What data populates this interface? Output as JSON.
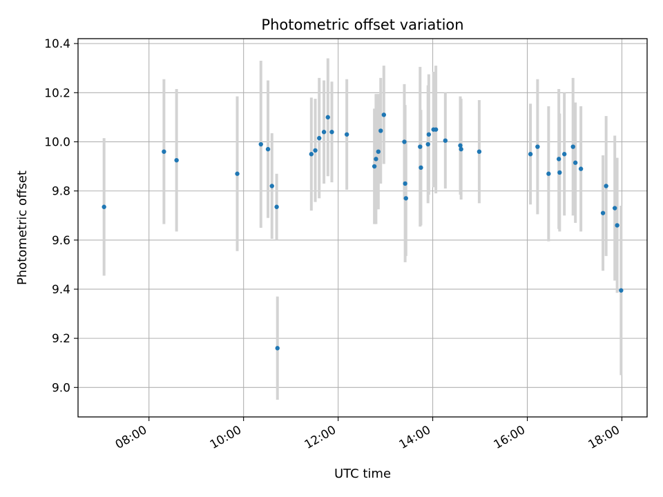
{
  "chart_data": {
    "type": "scatter",
    "title": "Photometric offset variation",
    "xlabel": "UTC time",
    "ylabel": "Photometric offset",
    "x_tick_labels": [
      "08:00",
      "10:00",
      "12:00",
      "14:00",
      "16:00",
      "18:00"
    ],
    "x_ticks": [
      "08:00",
      "10:00",
      "12:00",
      "14:00",
      "16:00",
      "18:00"
    ],
    "y_ticks": [
      9.0,
      9.2,
      9.4,
      9.6,
      9.8,
      10.0,
      10.2,
      10.4
    ],
    "xlim": [
      "06:30",
      "18:32"
    ],
    "ylim": [
      8.88,
      10.42
    ],
    "grid": true,
    "colors": {
      "point": "#1f77b4",
      "errorbar": "#d3d3d3",
      "grid": "#b0b0b0"
    },
    "points": [
      {
        "x": "07:03",
        "y": 9.735,
        "err": 0.28
      },
      {
        "x": "08:19",
        "y": 9.96,
        "err": 0.295
      },
      {
        "x": "08:35",
        "y": 9.925,
        "err": 0.29
      },
      {
        "x": "09:52",
        "y": 9.87,
        "err": 0.315
      },
      {
        "x": "10:22",
        "y": 9.99,
        "err": 0.34
      },
      {
        "x": "10:31",
        "y": 9.97,
        "err": 0.28
      },
      {
        "x": "10:36",
        "y": 9.82,
        "err": 0.215
      },
      {
        "x": "10:42",
        "y": 9.735,
        "err": 0.135
      },
      {
        "x": "10:43",
        "y": 9.16,
        "err": 0.21
      },
      {
        "x": "11:26",
        "y": 9.95,
        "err": 0.23
      },
      {
        "x": "11:31",
        "y": 9.965,
        "err": 0.21
      },
      {
        "x": "11:36",
        "y": 10.015,
        "err": 0.245
      },
      {
        "x": "11:42",
        "y": 10.04,
        "err": 0.21
      },
      {
        "x": "11:47",
        "y": 10.1,
        "err": 0.24
      },
      {
        "x": "11:52",
        "y": 10.04,
        "err": 0.205
      },
      {
        "x": "12:11",
        "y": 10.03,
        "err": 0.225
      },
      {
        "x": "12:46",
        "y": 9.9,
        "err": 0.235
      },
      {
        "x": "12:48",
        "y": 9.93,
        "err": 0.265
      },
      {
        "x": "12:51",
        "y": 9.96,
        "err": 0.235
      },
      {
        "x": "12:54",
        "y": 10.045,
        "err": 0.215
      },
      {
        "x": "12:58",
        "y": 10.11,
        "err": 0.2
      },
      {
        "x": "13:24",
        "y": 10.0,
        "err": 0.235
      },
      {
        "x": "13:25",
        "y": 9.83,
        "err": 0.32
      },
      {
        "x": "13:26",
        "y": 9.77,
        "err": 0.235
      },
      {
        "x": "13:44",
        "y": 9.98,
        "err": 0.325
      },
      {
        "x": "13:45",
        "y": 9.895,
        "err": 0.235
      },
      {
        "x": "13:54",
        "y": 9.99,
        "err": 0.24
      },
      {
        "x": "13:55",
        "y": 10.03,
        "err": 0.245
      },
      {
        "x": "14:01",
        "y": 10.05,
        "err": 0.235
      },
      {
        "x": "14:04",
        "y": 10.05,
        "err": 0.26
      },
      {
        "x": "14:16",
        "y": 10.005,
        "err": 0.195
      },
      {
        "x": "14:35",
        "y": 9.985,
        "err": 0.2
      },
      {
        "x": "14:36",
        "y": 9.97,
        "err": 0.205
      },
      {
        "x": "14:59",
        "y": 9.96,
        "err": 0.21
      },
      {
        "x": "16:04",
        "y": 9.95,
        "err": 0.205
      },
      {
        "x": "16:13",
        "y": 9.98,
        "err": 0.275
      },
      {
        "x": "16:27",
        "y": 9.87,
        "err": 0.275
      },
      {
        "x": "16:40",
        "y": 9.93,
        "err": 0.285
      },
      {
        "x": "16:41",
        "y": 9.875,
        "err": 0.24
      },
      {
        "x": "16:47",
        "y": 9.95,
        "err": 0.25
      },
      {
        "x": "16:58",
        "y": 9.98,
        "err": 0.28
      },
      {
        "x": "17:01",
        "y": 9.915,
        "err": 0.245
      },
      {
        "x": "17:08",
        "y": 9.89,
        "err": 0.255
      },
      {
        "x": "17:36",
        "y": 9.71,
        "err": 0.235
      },
      {
        "x": "17:40",
        "y": 9.82,
        "err": 0.285
      },
      {
        "x": "17:51",
        "y": 9.73,
        "err": 0.295
      },
      {
        "x": "17:54",
        "y": 9.66,
        "err": 0.275
      },
      {
        "x": "17:59",
        "y": 9.395,
        "err": 0.345
      }
    ]
  }
}
